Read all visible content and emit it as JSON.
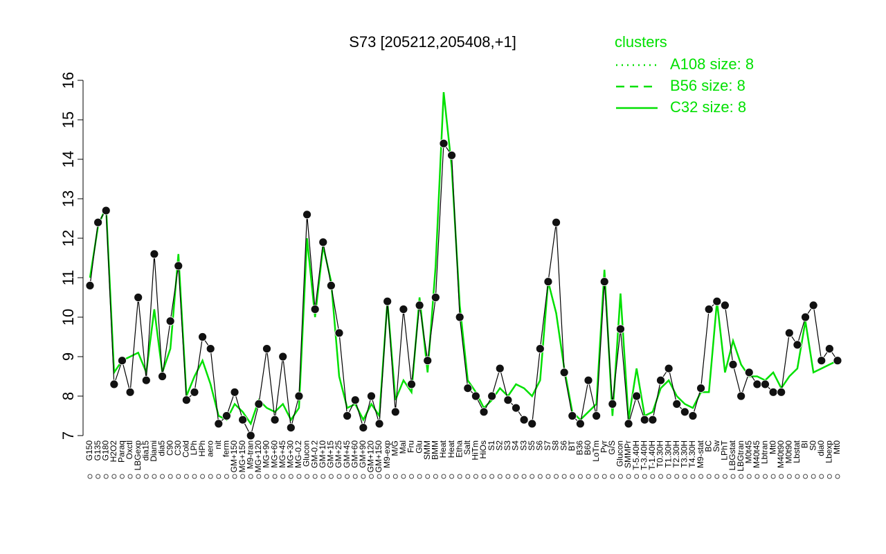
{
  "chart_data": {
    "type": "line",
    "title": "S73 [205212,205408,+1]",
    "ylim": [
      7,
      16
    ],
    "yticks": [
      7,
      8,
      9,
      10,
      11,
      12,
      13,
      14,
      15,
      16
    ],
    "color": "#000000",
    "categories": [
      "G150",
      "G135",
      "G180",
      "H2O2",
      "Paraq",
      "Oxctl",
      "LBGexp",
      "dia15",
      "Diami",
      "dia5",
      "C90",
      "C30",
      "Cold",
      "LPh",
      "HPh",
      "aero",
      "nit",
      "ferm",
      "GM+150",
      "MG+150",
      "M9-tran",
      "MG+120",
      "MG+90",
      "MG+60",
      "MG+45",
      "MG+30",
      "MG-0.2",
      "Glucon",
      "GM-0.2",
      "GM+10",
      "GM+15",
      "GM+25",
      "GM+45",
      "GM+60",
      "GM+90",
      "GM+120",
      "GM+150",
      "M9-exp",
      "M/G",
      "Mal",
      "Fru",
      "Glu",
      "SMM",
      "BMM",
      "Heat",
      "Heat",
      "Etha",
      "Salt",
      "HiTm",
      "HiOs",
      "S1",
      "S2",
      "S3",
      "S4",
      "S3",
      "S5",
      "S6",
      "S7",
      "S8",
      "S6",
      "BT",
      "B36",
      "B60",
      "LoTm",
      "Pyr",
      "G/S",
      "Glucon",
      "SMMPr",
      "T-5.40H",
      "T-3.40H",
      "T-1.40H",
      "T0.30H",
      "T1.30H",
      "T2.30H",
      "T3.30H",
      "T4.30H",
      "M9-stat",
      "BC",
      "Sw",
      "LPhT",
      "LBGstat",
      "LBGtran",
      "M0t45",
      "M40t45",
      "Lbtran",
      "Mt0",
      "M40t90",
      "M0t90",
      "Lbstat",
      "BI",
      "S0",
      "dia0",
      "Lbexp",
      "Mt0"
    ],
    "values": [
      10.8,
      12.4,
      12.7,
      8.3,
      8.9,
      8.1,
      10.5,
      8.4,
      11.6,
      8.5,
      9.9,
      11.3,
      7.9,
      8.1,
      9.5,
      9.2,
      7.3,
      7.5,
      8.1,
      7.4,
      7.0,
      7.8,
      9.2,
      7.4,
      9.0,
      7.2,
      8.0,
      12.6,
      10.2,
      11.9,
      10.8,
      9.6,
      7.5,
      7.9,
      7.2,
      8.0,
      7.3,
      10.4,
      7.6,
      10.2,
      8.3,
      10.3,
      8.9,
      10.5,
      14.4,
      14.1,
      10.0,
      8.2,
      8.0,
      7.6,
      8.0,
      8.7,
      7.9,
      7.7,
      7.4,
      7.3,
      9.2,
      10.9,
      12.4,
      8.6,
      7.5,
      7.3,
      8.4,
      7.5,
      10.9,
      7.8,
      9.7,
      7.3,
      8.0,
      7.4,
      7.4,
      8.4,
      8.7,
      7.8,
      7.6,
      7.5,
      8.2,
      10.2,
      10.4,
      10.3,
      8.8,
      8.0,
      8.6,
      8.3,
      8.3,
      8.1,
      8.1,
      9.6,
      9.3,
      10.0,
      10.3,
      8.9,
      9.2,
      8.9
    ],
    "cluster_line": {
      "color": "#00e000",
      "values": [
        11.0,
        12.3,
        12.8,
        8.6,
        8.9,
        9.0,
        9.1,
        8.6,
        10.2,
        8.6,
        9.2,
        11.6,
        8.0,
        8.5,
        8.9,
        8.3,
        7.5,
        7.4,
        7.8,
        7.6,
        7.3,
        7.9,
        7.7,
        7.6,
        7.8,
        7.4,
        7.7,
        12.0,
        10.0,
        11.8,
        10.9,
        8.5,
        7.7,
        7.8,
        7.4,
        7.8,
        7.5,
        10.4,
        7.9,
        8.4,
        8.1,
        10.5,
        8.6,
        11.3,
        15.7,
        13.8,
        10.3,
        8.4,
        8.1,
        7.7,
        7.9,
        8.2,
        8.0,
        8.3,
        8.2,
        8.0,
        8.4,
        10.9,
        10.1,
        8.7,
        7.6,
        7.4,
        7.6,
        7.8,
        11.2,
        7.5,
        10.6,
        7.4,
        8.7,
        7.5,
        7.6,
        8.2,
        8.4,
        8.0,
        7.8,
        7.7,
        8.1,
        8.1,
        10.4,
        8.6,
        9.4,
        8.8,
        8.5,
        8.5,
        8.4,
        8.6,
        8.2,
        8.5,
        8.7,
        9.9,
        8.6,
        8.7,
        8.8,
        8.9
      ]
    },
    "legend": {
      "title": "clusters",
      "corner": "top-right",
      "entries": [
        {
          "name": "A108 size: 8",
          "dash": "dotted"
        },
        {
          "name": "B56 size: 8",
          "dash": "dashed"
        },
        {
          "name": "C32 size: 8",
          "dash": "solid"
        }
      ]
    }
  }
}
